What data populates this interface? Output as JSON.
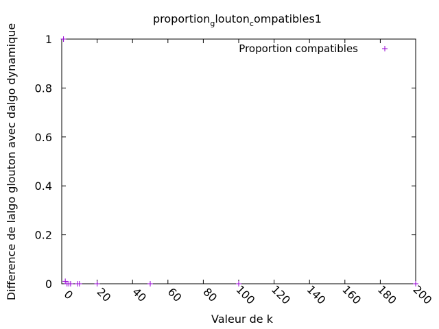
{
  "chart_data": {
    "type": "scatter",
    "title_parts": [
      "proportion",
      "g",
      "louton",
      "c",
      "ompatibles1"
    ],
    "xlabel": "Valeur de k",
    "ylabel": "Difference de lalgo glouton avec dalgo dynamique",
    "xlim": [
      0,
      200
    ],
    "ylim": [
      0,
      1
    ],
    "xticks": [
      0,
      20,
      40,
      60,
      80,
      100,
      120,
      140,
      160,
      180,
      200
    ],
    "yticks": [
      0,
      0.2,
      0.4,
      0.6,
      0.8,
      1
    ],
    "ytick_labels": [
      "0",
      "0.2",
      "0.4",
      "0.6",
      "0.8",
      "1"
    ],
    "grid": false,
    "legend_position": "top-right",
    "series": [
      {
        "name": "Proportion compatibles",
        "color": "#9400d3",
        "marker": "plus",
        "x": [
          1,
          2,
          3,
          4,
          5,
          9,
          10,
          20,
          50,
          100,
          200
        ],
        "y": [
          1,
          0.01,
          0,
          0,
          0,
          0,
          0,
          0,
          0,
          0,
          0
        ]
      }
    ]
  }
}
